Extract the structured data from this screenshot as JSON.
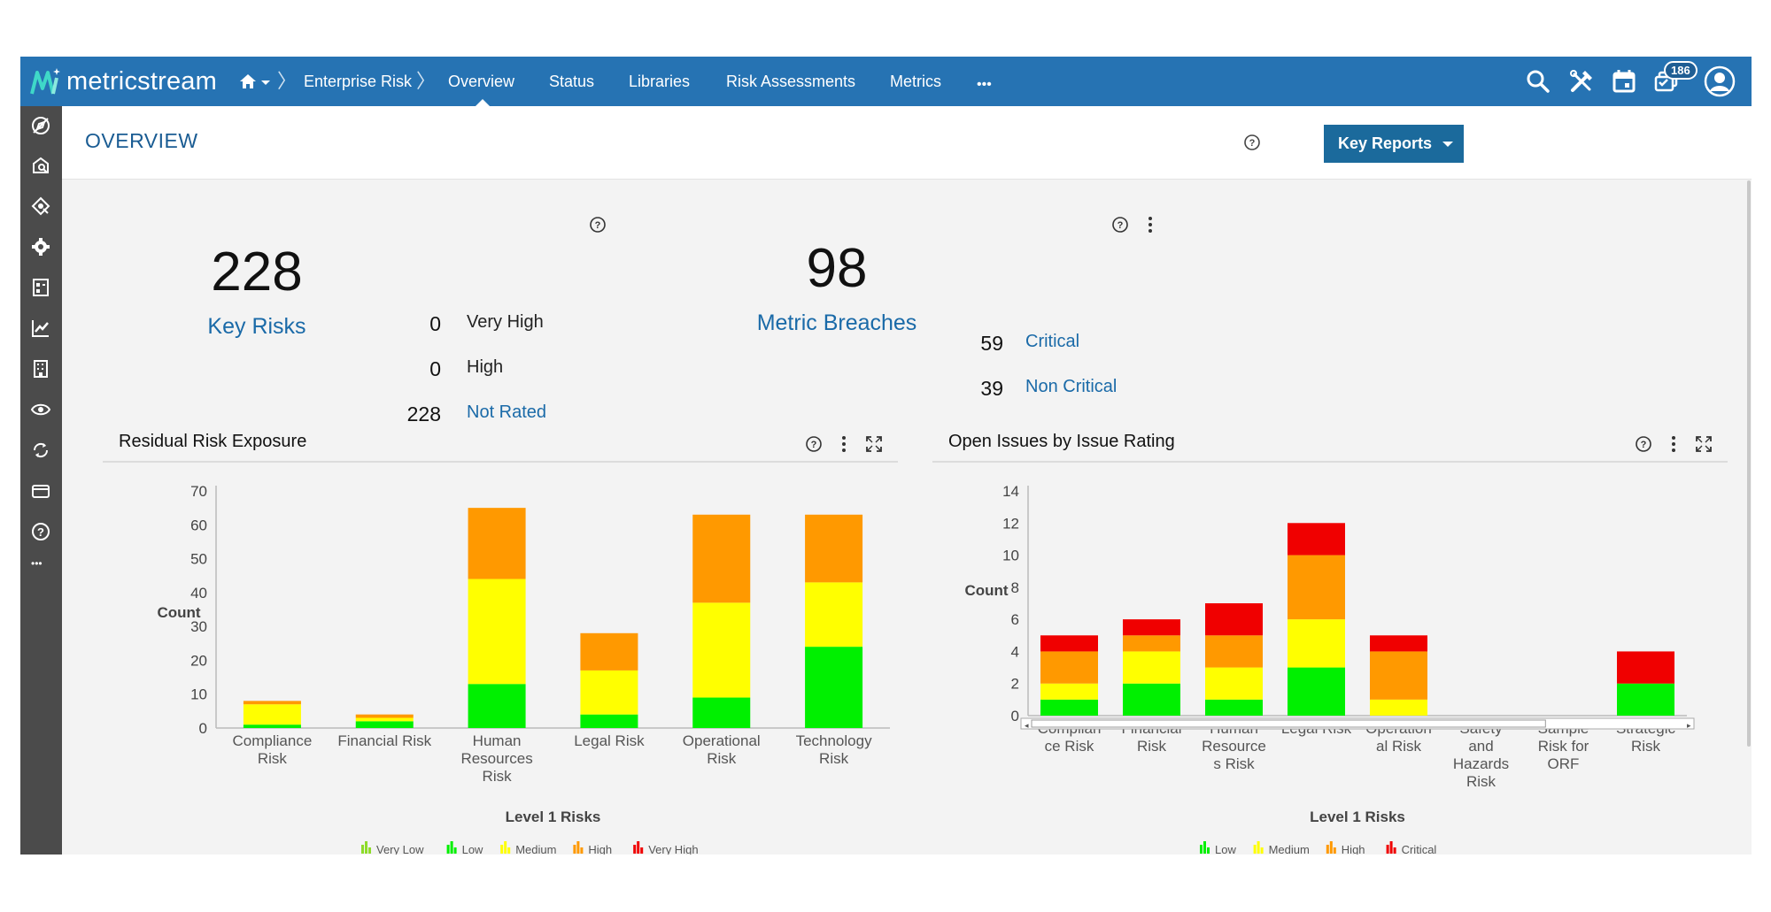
{
  "brand": {
    "name": "metricstream"
  },
  "nav": {
    "breadcrumb": "Enterprise Risk",
    "tabs": [
      {
        "label": "Overview",
        "active": true
      },
      {
        "label": "Status"
      },
      {
        "label": "Libraries"
      },
      {
        "label": "Risk Assessments"
      },
      {
        "label": "Metrics"
      }
    ],
    "more": "•••",
    "notification_count": "186",
    "icons": [
      "home-icon",
      "search-icon",
      "tools-icon",
      "calendar-icon",
      "messages-icon",
      "user-avatar-icon"
    ]
  },
  "sidebar": {
    "icons": [
      "compass-icon",
      "risk-search-icon",
      "risk-target-icon",
      "gear-shield-icon",
      "scorecard-icon",
      "line-chart-icon",
      "building-icon",
      "eye-settings-icon",
      "refresh-icon",
      "wallet-icon",
      "help-icon",
      "more-icon"
    ],
    "more": "•••"
  },
  "header": {
    "title": "OVERVIEW",
    "key_reports": "Key Reports"
  },
  "key_risks": {
    "total": "228",
    "label": "Key Risks",
    "breakdown": [
      {
        "count": "0",
        "label": "Very High"
      },
      {
        "count": "0",
        "label": "High"
      },
      {
        "count": "228",
        "label": "Not Rated"
      }
    ]
  },
  "metric_breaches": {
    "total": "98",
    "label": "Metric Breaches",
    "breakdown": [
      {
        "count": "59",
        "label": "Critical"
      },
      {
        "count": "39",
        "label": "Non Critical"
      }
    ]
  },
  "colors": {
    "very_low": "#8edb2a",
    "low": "#00f000",
    "medium": "#ffff00",
    "high": "#ff9900",
    "very_high": "#f00000",
    "critical": "#f00000",
    "brand": "#2673b3"
  },
  "chart_data": [
    {
      "type": "bar",
      "stacked": true,
      "title": "Residual Risk Exposure",
      "xlabel": "Level 1 Risks",
      "ylabel": "Count",
      "ylim": [
        0,
        70
      ],
      "yticks": [
        0,
        10,
        20,
        30,
        40,
        50,
        60,
        70
      ],
      "categories": [
        [
          "Compliance",
          "Risk"
        ],
        [
          "Financial Risk"
        ],
        [
          "Human",
          "Resources",
          "Risk"
        ],
        [
          "Legal Risk"
        ],
        [
          "Operational",
          "Risk"
        ],
        [
          "Technology",
          "Risk"
        ]
      ],
      "series": [
        {
          "name": "Very Low",
          "color": "#8edb2a",
          "values": [
            0,
            0,
            0,
            0,
            0,
            0
          ]
        },
        {
          "name": "Low",
          "color": "#00f000",
          "values": [
            1,
            2,
            13,
            4,
            9,
            24
          ]
        },
        {
          "name": "Medium",
          "color": "#ffff00",
          "values": [
            6,
            1,
            31,
            13,
            28,
            19
          ]
        },
        {
          "name": "High",
          "color": "#ff9900",
          "values": [
            1,
            1,
            21,
            11,
            26,
            20
          ]
        },
        {
          "name": "Very High",
          "color": "#f00000",
          "values": [
            0,
            0,
            0,
            0,
            0,
            0
          ]
        }
      ],
      "legend_position": "bottom"
    },
    {
      "type": "bar",
      "stacked": true,
      "title": "Open Issues by Issue Rating",
      "xlabel": "Level 1 Risks",
      "ylabel": "Count",
      "ylim": [
        0,
        14
      ],
      "yticks": [
        0,
        2,
        4,
        6,
        8,
        10,
        12,
        14
      ],
      "categories": [
        [
          "Complian",
          "ce Risk"
        ],
        [
          "Financial",
          "Risk"
        ],
        [
          "Human",
          "Resource",
          "s Risk"
        ],
        [
          "Legal Risk"
        ],
        [
          "Operation",
          "al Risk"
        ],
        [
          "Safety",
          "and",
          "Hazards",
          "Risk"
        ],
        [
          "Sample",
          "Risk for",
          "ORF"
        ],
        [
          "Strategic",
          "Risk"
        ]
      ],
      "series": [
        {
          "name": "Low",
          "color": "#00f000",
          "values": [
            1,
            2,
            1,
            3,
            0,
            0,
            0,
            2
          ]
        },
        {
          "name": "Medium",
          "color": "#ffff00",
          "values": [
            1,
            2,
            2,
            3,
            1,
            0,
            0,
            0
          ]
        },
        {
          "name": "High",
          "color": "#ff9900",
          "values": [
            2,
            1,
            2,
            4,
            3,
            0,
            0,
            0
          ]
        },
        {
          "name": "Critical",
          "color": "#f00000",
          "values": [
            1,
            1,
            2,
            2,
            1,
            0,
            0,
            2
          ]
        }
      ],
      "legend_position": "bottom"
    }
  ]
}
